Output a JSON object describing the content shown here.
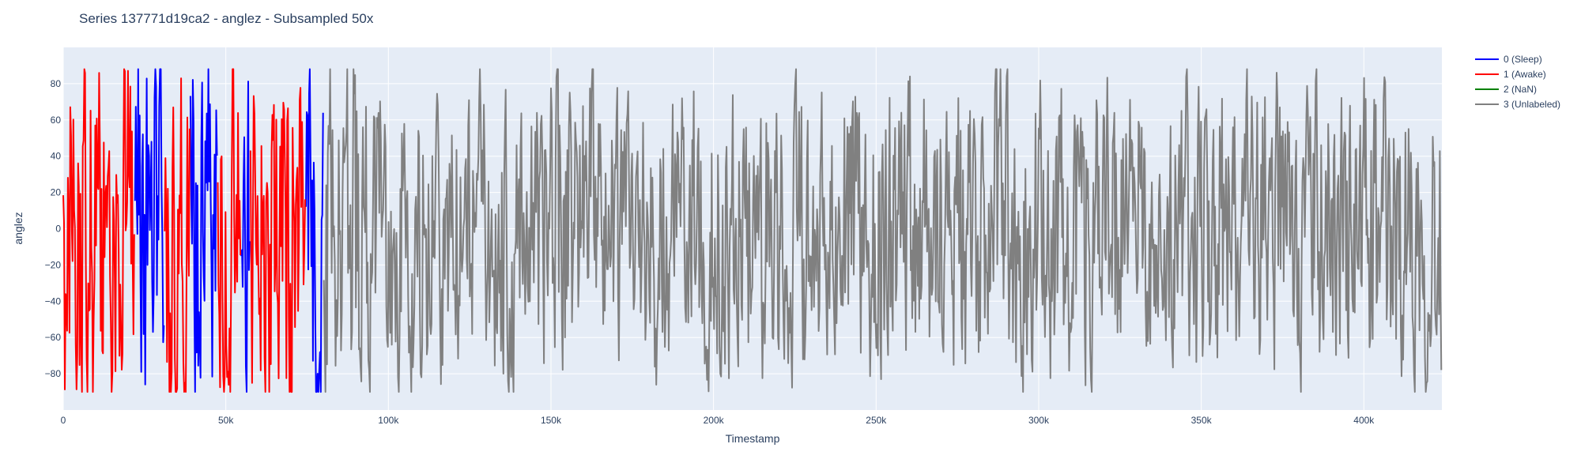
{
  "chart_data": {
    "type": "line",
    "title": "Series 137771d19ca2 - anglez - Subsampled 50x",
    "xlabel": "Timestamp",
    "ylabel": "anglez",
    "xlim": [
      0,
      424000
    ],
    "ylim": [
      -100,
      100
    ],
    "x_ticks": [
      0,
      50000,
      100000,
      150000,
      200000,
      250000,
      300000,
      350000,
      400000
    ],
    "x_tick_labels": [
      "0",
      "50k",
      "100k",
      "150k",
      "200k",
      "250k",
      "300k",
      "350k",
      "400k"
    ],
    "y_ticks": [
      -80,
      -60,
      -40,
      -20,
      0,
      20,
      40,
      60,
      80
    ],
    "y_tick_labels": [
      "−80",
      "−60",
      "−40",
      "−20",
      "0",
      "20",
      "40",
      "60",
      "80"
    ],
    "grid": true,
    "legend_position": "top-right, outside plot",
    "plot_bgcolor": "#e5ecf6",
    "series": [
      {
        "name": "0 (Sleep)",
        "color": "#0000ff",
        "segments": [
          [
            22000,
            31000
          ],
          [
            39000,
            47500
          ],
          [
            54500,
            57500
          ],
          [
            74500,
            80000
          ]
        ]
      },
      {
        "name": "1 (Awake)",
        "color": "#ff0000",
        "segments": [
          [
            0,
            22000
          ],
          [
            31000,
            39000
          ],
          [
            47500,
            54500
          ],
          [
            57500,
            74500
          ]
        ]
      },
      {
        "name": "2 (NaN)",
        "color": "#008000",
        "segments": []
      },
      {
        "name": "3 (Unlabeled)",
        "color": "#808080",
        "segments": [
          [
            80000,
            424000
          ]
        ]
      }
    ]
  }
}
